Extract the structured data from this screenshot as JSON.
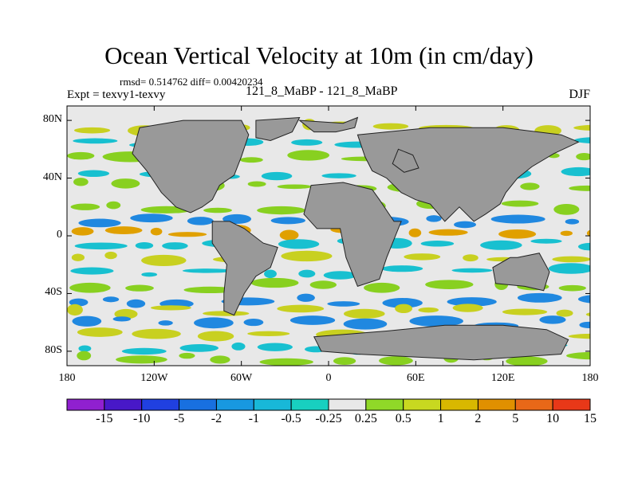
{
  "header": {
    "title": "Ocean Vertical Velocity at 10m (in cm/day)",
    "stats": "rmsd= 0.514762  diff= 0.00420234",
    "expt": "Expt = texvy1-texvy",
    "run": "121_8_MaBP - 121_8_MaBP",
    "season": "DJF"
  },
  "map": {
    "lat_min": -90,
    "lat_max": 90,
    "lon_min": -180,
    "lon_max": 180,
    "lat_ticks": [
      {
        "value": 80,
        "label": "80N"
      },
      {
        "value": 40,
        "label": "40N"
      },
      {
        "value": 0,
        "label": "0"
      },
      {
        "value": -40,
        "label": "40S"
      },
      {
        "value": -80,
        "label": "80S"
      }
    ],
    "lon_ticks": [
      {
        "value": -180,
        "label": "180"
      },
      {
        "value": -120,
        "label": "120W"
      },
      {
        "value": -60,
        "label": "60W"
      },
      {
        "value": 0,
        "label": "0"
      },
      {
        "value": 60,
        "label": "60E"
      },
      {
        "value": 120,
        "label": "120E"
      },
      {
        "value": 180,
        "label": "180"
      }
    ],
    "land_color": "#999999",
    "background_color": "#e8e8e8",
    "land": [
      [
        [
          -130,
          75
        ],
        [
          -100,
          80
        ],
        [
          -60,
          80
        ],
        [
          -55,
          70
        ],
        [
          -60,
          55
        ],
        [
          -65,
          42
        ],
        [
          -75,
          35
        ],
        [
          -80,
          25
        ],
        [
          -87,
          20
        ],
        [
          -95,
          16
        ],
        [
          -105,
          20
        ],
        [
          -115,
          30
        ],
        [
          -125,
          45
        ],
        [
          -135,
          57
        ],
        [
          -130,
          75
        ]
      ],
      [
        [
          -50,
          80
        ],
        [
          -20,
          82
        ],
        [
          -25,
          72
        ],
        [
          -40,
          66
        ],
        [
          -50,
          68
        ],
        [
          -50,
          80
        ]
      ],
      [
        [
          -20,
          80
        ],
        [
          10,
          78
        ],
        [
          20,
          82
        ],
        [
          18,
          75
        ],
        [
          5,
          72
        ],
        [
          -10,
          72
        ],
        [
          -20,
          80
        ]
      ],
      [
        [
          -80,
          10
        ],
        [
          -68,
          10
        ],
        [
          -58,
          5
        ],
        [
          -45,
          -5
        ],
        [
          -35,
          -8
        ],
        [
          -40,
          -22
        ],
        [
          -50,
          -28
        ],
        [
          -58,
          -40
        ],
        [
          -65,
          -55
        ],
        [
          -72,
          -52
        ],
        [
          -72,
          -40
        ],
        [
          -70,
          -20
        ],
        [
          -80,
          -5
        ],
        [
          -80,
          10
        ]
      ],
      [
        [
          -12,
          35
        ],
        [
          10,
          37
        ],
        [
          30,
          32
        ],
        [
          35,
          25
        ],
        [
          45,
          10
        ],
        [
          50,
          10
        ],
        [
          40,
          -15
        ],
        [
          35,
          -30
        ],
        [
          20,
          -35
        ],
        [
          12,
          -15
        ],
        [
          8,
          5
        ],
        [
          -8,
          5
        ],
        [
          -17,
          15
        ],
        [
          -12,
          35
        ]
      ],
      [
        [
          20,
          70
        ],
        [
          40,
          72
        ],
        [
          70,
          75
        ],
        [
          120,
          75
        ],
        [
          160,
          70
        ],
        [
          172,
          65
        ],
        [
          155,
          57
        ],
        [
          140,
          48
        ],
        [
          130,
          40
        ],
        [
          122,
          30
        ],
        [
          118,
          22
        ],
        [
          108,
          15
        ],
        [
          100,
          10
        ],
        [
          90,
          20
        ],
        [
          80,
          10
        ],
        [
          70,
          22
        ],
        [
          60,
          25
        ],
        [
          50,
          30
        ],
        [
          40,
          40
        ],
        [
          30,
          45
        ],
        [
          25,
          55
        ],
        [
          20,
          70
        ]
      ],
      [
        [
          48,
          60
        ],
        [
          58,
          56
        ],
        [
          62,
          47
        ],
        [
          52,
          44
        ],
        [
          44,
          50
        ],
        [
          48,
          60
        ]
      ],
      [
        [
          130,
          -15
        ],
        [
          145,
          -12
        ],
        [
          152,
          -25
        ],
        [
          148,
          -38
        ],
        [
          135,
          -35
        ],
        [
          115,
          -33
        ],
        [
          113,
          -22
        ],
        [
          125,
          -15
        ],
        [
          130,
          -15
        ]
      ],
      [
        [
          -10,
          -70
        ],
        [
          40,
          -66
        ],
        [
          80,
          -62
        ],
        [
          120,
          -62
        ],
        [
          150,
          -65
        ],
        [
          165,
          -72
        ],
        [
          160,
          -82
        ],
        [
          100,
          -86
        ],
        [
          60,
          -84
        ],
        [
          20,
          -82
        ],
        [
          -5,
          -80
        ],
        [
          -10,
          -70
        ]
      ]
    ],
    "palette": {
      "pos_weak": "#88d020",
      "pos_mid": "#c8d020",
      "pos_strong": "#e0a000",
      "neg_weak": "#18c0d0",
      "neg_mid": "#2088e0"
    },
    "bands": [
      {
        "lat": 75,
        "sign": "pos",
        "strength": 2
      },
      {
        "lat": 65,
        "sign": "neg",
        "strength": 1
      },
      {
        "lat": 55,
        "sign": "pos",
        "strength": 1
      },
      {
        "lat": 42,
        "sign": "neg",
        "strength": 1
      },
      {
        "lat": 35,
        "sign": "pos",
        "strength": 1
      },
      {
        "lat": 20,
        "sign": "pos",
        "strength": 1
      },
      {
        "lat": 10,
        "sign": "neg",
        "strength": 2
      },
      {
        "lat": 3,
        "sign": "pos",
        "strength": 3
      },
      {
        "lat": -5,
        "sign": "neg",
        "strength": 1
      },
      {
        "lat": -15,
        "sign": "pos",
        "strength": 2
      },
      {
        "lat": -25,
        "sign": "neg",
        "strength": 1
      },
      {
        "lat": -35,
        "sign": "pos",
        "strength": 1
      },
      {
        "lat": -45,
        "sign": "neg",
        "strength": 2
      },
      {
        "lat": -52,
        "sign": "pos",
        "strength": 2
      },
      {
        "lat": -60,
        "sign": "neg",
        "strength": 2
      },
      {
        "lat": -68,
        "sign": "pos",
        "strength": 2
      },
      {
        "lat": -78,
        "sign": "neg",
        "strength": 1
      },
      {
        "lat": -85,
        "sign": "pos",
        "strength": 1
      }
    ]
  },
  "colorbar": {
    "colors": [
      "#9020d0",
      "#4818c8",
      "#2040e0",
      "#1870e0",
      "#1898e0",
      "#18b8d8",
      "#18d0c0",
      "#e8e8e8",
      "#90d828",
      "#c8d820",
      "#d8b800",
      "#e09000",
      "#e86818",
      "#e83818"
    ],
    "labels": [
      "-15",
      "-10",
      "-5",
      "-2",
      "-1",
      "-0.5",
      "-0.25",
      "0.25",
      "0.5",
      "1",
      "2",
      "5",
      "10",
      "15"
    ]
  }
}
